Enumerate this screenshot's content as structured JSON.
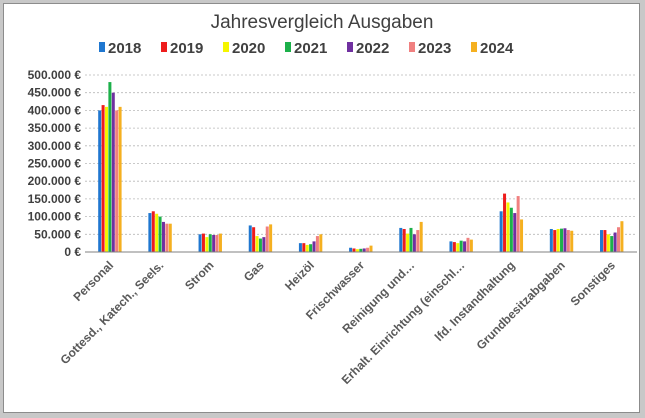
{
  "chart_data": {
    "type": "bar",
    "title": "Jahresvergleich Ausgaben",
    "xlabel": "",
    "ylabel": "",
    "ylim": [
      0,
      500000
    ],
    "yticks": [
      "0 €",
      "50.000 €",
      "100.000 €",
      "150.000 €",
      "200.000 €",
      "250.000 €",
      "300.000 €",
      "350.000 €",
      "400.000 €",
      "450.000 €",
      "500.000 €"
    ],
    "grid": true,
    "legend_position": "top",
    "categories": [
      "Personal",
      "Gottesd., Katech., Seels.",
      "Strom",
      "Gas",
      "Heizöl",
      "Frischwasser",
      "Reinigung und…",
      "Erhalt. Einrichtung (einschl…",
      "lfd. Instandhaltung",
      "Grundbesitzabgaben",
      "Sonstiges"
    ],
    "series": [
      {
        "name": "2018",
        "color": "#1f77d0",
        "values": [
          400000,
          110000,
          50000,
          75000,
          25000,
          12000,
          68000,
          30000,
          115000,
          65000,
          62000
        ]
      },
      {
        "name": "2019",
        "color": "#ee1c1c",
        "values": [
          415000,
          115000,
          52000,
          70000,
          25000,
          10000,
          65000,
          28000,
          165000,
          62000,
          62000
        ]
      },
      {
        "name": "2020",
        "color": "#f5f500",
        "values": [
          410000,
          108000,
          42000,
          45000,
          20000,
          8000,
          52000,
          25000,
          140000,
          65000,
          50000
        ]
      },
      {
        "name": "2021",
        "color": "#1cb04a",
        "values": [
          480000,
          100000,
          50000,
          38000,
          22000,
          9000,
          68000,
          32000,
          125000,
          66000,
          45000
        ]
      },
      {
        "name": "2022",
        "color": "#7030a0",
        "values": [
          450000,
          85000,
          48000,
          42000,
          30000,
          10000,
          50000,
          30000,
          110000,
          67000,
          55000
        ]
      },
      {
        "name": "2023",
        "color": "#f08080",
        "values": [
          400000,
          80000,
          48000,
          72000,
          45000,
          12000,
          62000,
          40000,
          158000,
          62000,
          70000
        ]
      },
      {
        "name": "2024",
        "color": "#f5b020",
        "values": [
          410000,
          80000,
          52000,
          78000,
          50000,
          18000,
          85000,
          35000,
          92000,
          60000,
          87000
        ]
      }
    ]
  }
}
